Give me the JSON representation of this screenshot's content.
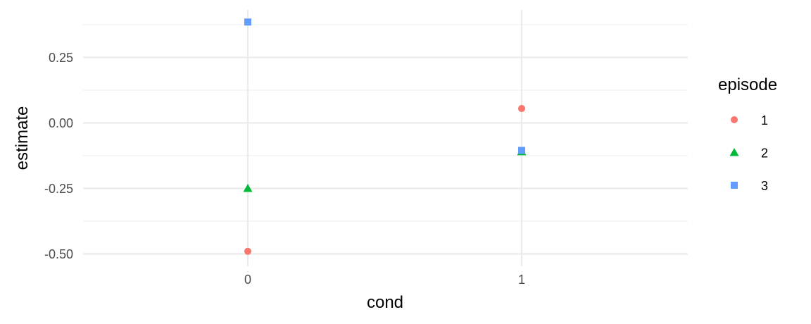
{
  "chart_data": {
    "type": "scatter",
    "title": "",
    "xlabel": "cond",
    "ylabel": "estimate",
    "x_type": "discrete",
    "categories": [
      "0",
      "1"
    ],
    "y_ticks": [
      -0.5,
      -0.25,
      0.0,
      0.25
    ],
    "y_tick_labels": [
      "-0.50",
      "-0.25",
      "0.00",
      "0.25"
    ],
    "ylim": [
      -0.52,
      0.41
    ],
    "grid": true,
    "legend": {
      "title": "episode",
      "position": "right"
    },
    "series": [
      {
        "name": "1",
        "shape": "circle",
        "color": "#F8766D",
        "values": [
          -0.49,
          0.055
        ]
      },
      {
        "name": "2",
        "shape": "triangle",
        "color": "#00BA38",
        "values": [
          -0.25,
          -0.11
        ]
      },
      {
        "name": "3",
        "shape": "square",
        "color": "#619CFF",
        "values": [
          0.385,
          -0.105
        ]
      }
    ]
  }
}
